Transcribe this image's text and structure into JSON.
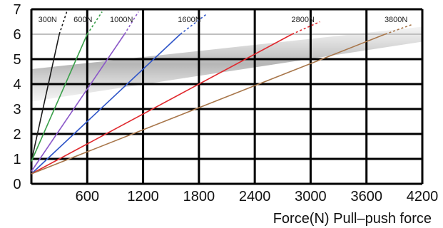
{
  "chart_data": {
    "type": "line",
    "title": "",
    "xlabel": "Force(N) Pull–push force",
    "ylabel": "",
    "xlim": [
      0,
      4200
    ],
    "ylim": [
      0,
      7
    ],
    "x_ticks": [
      "600",
      "1200",
      "1800",
      "2400",
      "3000",
      "3600",
      "4200"
    ],
    "y_ticks": [
      "0",
      "1",
      "2",
      "3",
      "4",
      "5",
      "6",
      "7"
    ],
    "grid": true,
    "gray_band": {
      "x": [
        0,
        4200
      ],
      "y_low": [
        3.3,
        5.7
      ],
      "y_high": [
        4.6,
        6.3
      ]
    },
    "series": [
      {
        "name": "300N",
        "color": "#1a1a1a",
        "x": [
          0,
          300
        ],
        "y": [
          0.9,
          6.0
        ],
        "dotted_x": [
          300,
          380
        ],
        "dotted_y": [
          6.0,
          6.9
        ]
      },
      {
        "name": "600N",
        "color": "#3aa04a",
        "x": [
          0,
          600
        ],
        "y": [
          0.9,
          6.0
        ],
        "dotted_x": [
          600,
          760
        ],
        "dotted_y": [
          6.0,
          6.9
        ]
      },
      {
        "name": "1000N",
        "color": "#8b58c8",
        "x": [
          0,
          1000
        ],
        "y": [
          0.5,
          6.0
        ],
        "dotted_x": [
          1000,
          1150
        ],
        "dotted_y": [
          6.0,
          6.9
        ]
      },
      {
        "name": "1600N",
        "color": "#2f55c8",
        "x": [
          0,
          1600
        ],
        "y": [
          0.4,
          6.0
        ],
        "dotted_x": [
          1600,
          1880
        ],
        "dotted_y": [
          6.0,
          6.8
        ]
      },
      {
        "name": "2800N",
        "color": "#e0292e",
        "x": [
          0,
          2800
        ],
        "y": [
          0.4,
          6.0
        ],
        "dotted_x": [
          2800,
          3100
        ],
        "dotted_y": [
          6.0,
          6.5
        ]
      },
      {
        "name": "3800N",
        "color": "#a8764a",
        "x": [
          0,
          3800
        ],
        "y": [
          0.4,
          6.0
        ],
        "dotted_x": [
          3800,
          4100
        ],
        "dotted_y": [
          6.0,
          6.4
        ]
      }
    ]
  }
}
